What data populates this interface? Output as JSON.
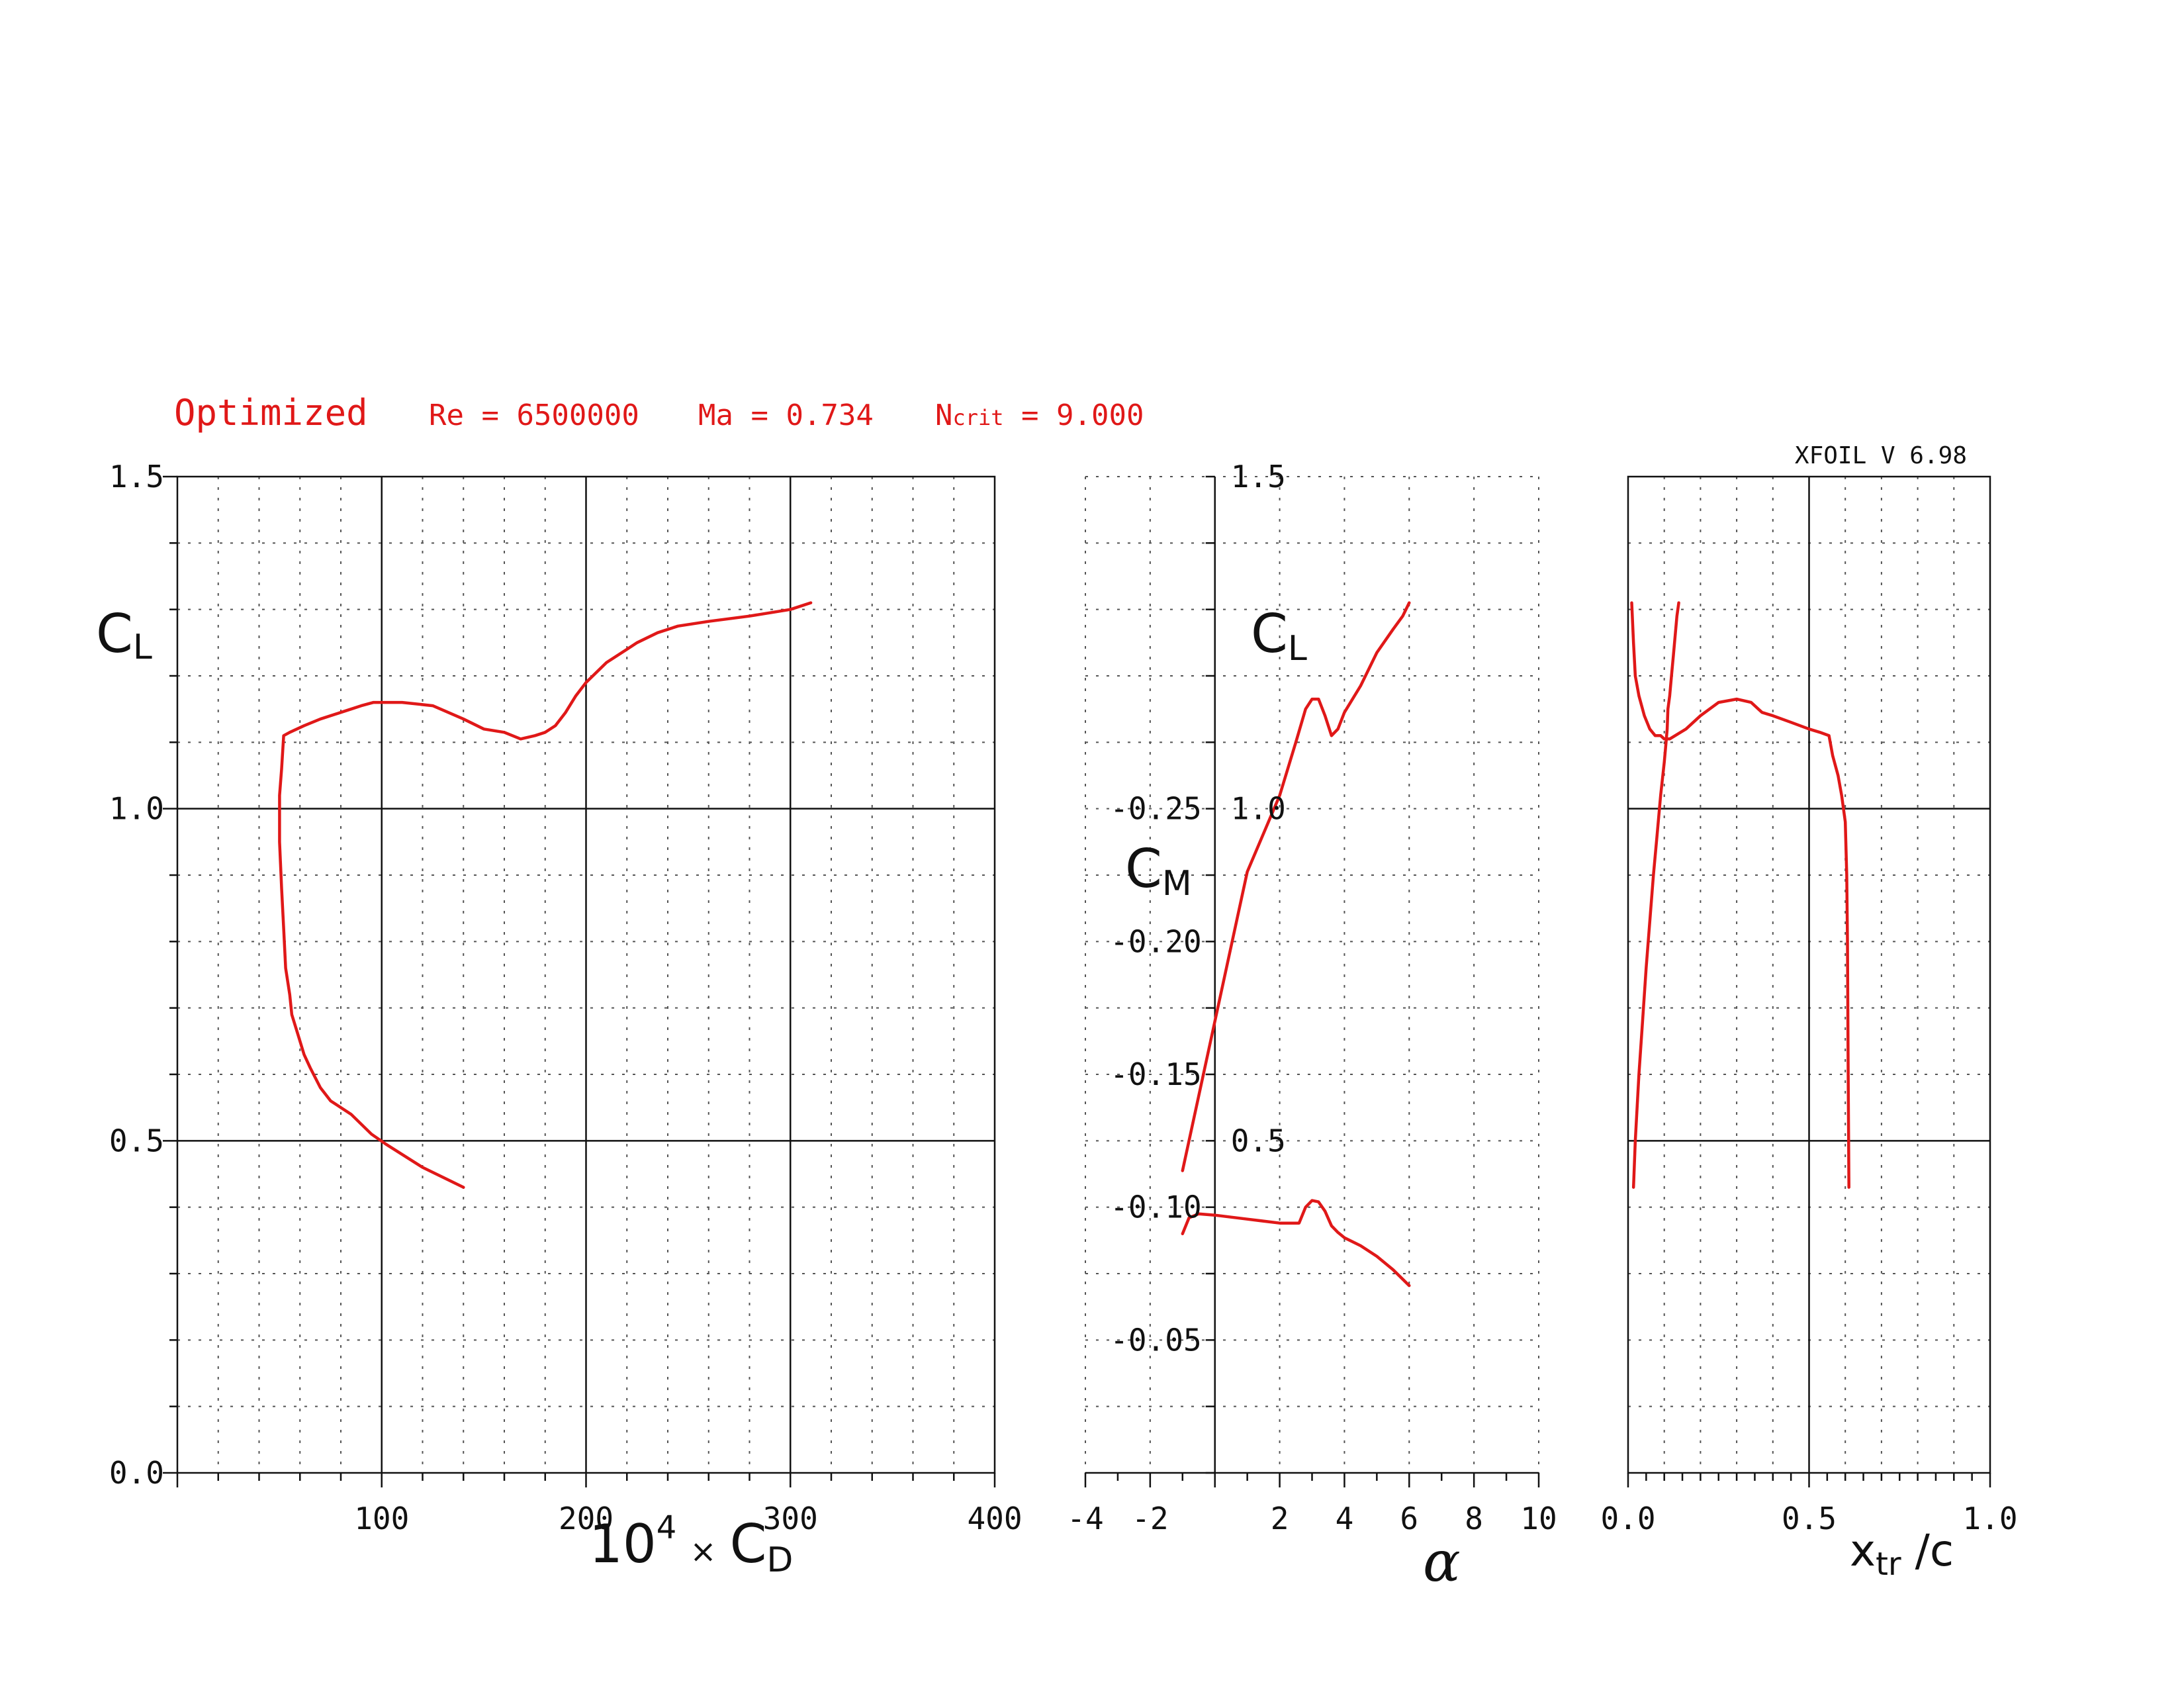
{
  "header": {
    "name": "Optimized",
    "re": "Re = 6500000",
    "ma": "Ma = 0.734",
    "ncrit_pre": "N",
    "ncrit_sub": "crit",
    "ncrit_post": " = 9.000",
    "version": "XFOIL V 6.98"
  },
  "colors": {
    "curve": "#e01818",
    "axes": "#111111",
    "grid": "#555555"
  },
  "chart_data": [
    {
      "type": "line",
      "name": "drag-polar",
      "xlabel": {
        "base": "10",
        "exp": "4",
        "times": "×",
        "sym": "C",
        "sub": "D"
      },
      "ylabel": {
        "sym": "C",
        "sub": "L"
      },
      "xlim": [
        0,
        400
      ],
      "ylim": [
        0,
        1.5
      ],
      "xticks": [
        "100",
        "200",
        "300",
        "400"
      ],
      "yticks": [
        "0.0",
        "0.5",
        "1.0",
        "1.5"
      ],
      "grid": true,
      "series": [
        {
          "x": [
            140,
            120,
            102,
            95,
            85,
            75,
            70,
            65,
            62,
            59,
            56,
            55,
            53,
            52,
            51,
            50,
            50,
            51,
            52,
            55,
            62,
            70,
            80,
            85,
            90,
            96,
            110,
            125,
            140,
            150,
            160,
            168,
            175,
            180,
            185,
            190,
            195,
            200,
            210,
            220,
            225,
            235,
            245,
            260,
            280,
            300,
            310
          ],
          "y": [
            0.43,
            0.46,
            0.495,
            0.51,
            0.54,
            0.56,
            0.58,
            0.61,
            0.63,
            0.66,
            0.69,
            0.72,
            0.76,
            0.82,
            0.88,
            0.95,
            1.02,
            1.06,
            1.11,
            1.115,
            1.125,
            1.135,
            1.145,
            1.15,
            1.155,
            1.16,
            1.16,
            1.155,
            1.135,
            1.12,
            1.115,
            1.105,
            1.11,
            1.115,
            1.125,
            1.145,
            1.17,
            1.19,
            1.22,
            1.24,
            1.25,
            1.265,
            1.275,
            1.282,
            1.29,
            1.3,
            1.31
          ]
        }
      ]
    },
    {
      "type": "line",
      "name": "lift-moment-vs-alpha",
      "xlabel": "α",
      "xlim": [
        -4,
        10
      ],
      "xticks": [
        "-4",
        "-2",
        "2",
        "4",
        "6",
        "8",
        "10"
      ],
      "cl_label": {
        "sym": "C",
        "sub": "L"
      },
      "cl_ylim": [
        0,
        1.5
      ],
      "cl_yticks": [
        "1.5",
        "1.0",
        "0.5"
      ],
      "cm_label": {
        "sym": "C",
        "sub": "M"
      },
      "cm_ylim": [
        0,
        -0.375
      ],
      "cm_yticks": [
        "-0.25",
        "-0.20",
        "-0.15",
        "-0.10",
        "-0.05"
      ],
      "grid": true,
      "series": [
        {
          "name": "CL",
          "x": [
            -1,
            0,
            1,
            2,
            2.5,
            2.8,
            3.0,
            3.2,
            3.4,
            3.6,
            3.8,
            4.0,
            4.5,
            5.0,
            5.5,
            5.8,
            6.0
          ],
          "y": [
            0.455,
            0.68,
            0.905,
            1.02,
            1.1,
            1.15,
            1.165,
            1.165,
            1.14,
            1.11,
            1.12,
            1.145,
            1.185,
            1.235,
            1.27,
            1.29,
            1.31
          ]
        },
        {
          "name": "CM",
          "x": [
            -1,
            -0.8,
            -0.5,
            0,
            1,
            2,
            2.6,
            2.8,
            3.0,
            3.2,
            3.4,
            3.6,
            3.8,
            4.0,
            4.5,
            5.0,
            5.5,
            6.0
          ],
          "y": [
            -0.09,
            -0.096,
            -0.0975,
            -0.097,
            -0.0955,
            -0.094,
            -0.094,
            -0.1,
            -0.1025,
            -0.102,
            -0.0985,
            -0.093,
            -0.0905,
            -0.0885,
            -0.0855,
            -0.0815,
            -0.0765,
            -0.0705
          ]
        }
      ]
    },
    {
      "type": "line",
      "name": "transition-location",
      "xlabel": {
        "base": "x",
        "sub": "tr",
        "post": " /c"
      },
      "xlim": [
        0,
        1
      ],
      "xticks": [
        "0.0",
        "0.5",
        "1.0"
      ],
      "ylim": [
        0,
        1.5
      ],
      "grid": true,
      "series": [
        {
          "name": "top",
          "x": [
            0.61,
            0.608,
            0.606,
            0.604,
            0.6,
            0.59,
            0.58,
            0.565,
            0.555,
            0.53,
            0.5,
            0.45,
            0.4,
            0.37,
            0.36,
            0.34,
            0.3,
            0.25,
            0.2,
            0.16,
            0.13,
            0.115,
            0.1,
            0.09,
            0.075,
            0.06,
            0.045,
            0.03,
            0.02,
            0.015,
            0.01
          ],
          "y": [
            0.43,
            0.6,
            0.8,
            0.9,
            0.98,
            1.02,
            1.05,
            1.08,
            1.11,
            1.115,
            1.12,
            1.13,
            1.14,
            1.145,
            1.15,
            1.16,
            1.165,
            1.16,
            1.14,
            1.12,
            1.11,
            1.105,
            1.105,
            1.11,
            1.11,
            1.12,
            1.14,
            1.17,
            1.2,
            1.25,
            1.31
          ]
        },
        {
          "name": "bottom",
          "x": [
            0.015,
            0.02,
            0.03,
            0.04,
            0.05,
            0.06,
            0.07,
            0.08,
            0.09,
            0.1,
            0.105,
            0.108,
            0.11,
            0.115,
            0.12,
            0.125,
            0.13,
            0.135,
            0.14
          ],
          "y": [
            0.43,
            0.5,
            0.6,
            0.68,
            0.76,
            0.83,
            0.9,
            0.96,
            1.02,
            1.07,
            1.1,
            1.12,
            1.15,
            1.17,
            1.2,
            1.23,
            1.26,
            1.29,
            1.31
          ]
        }
      ]
    }
  ]
}
